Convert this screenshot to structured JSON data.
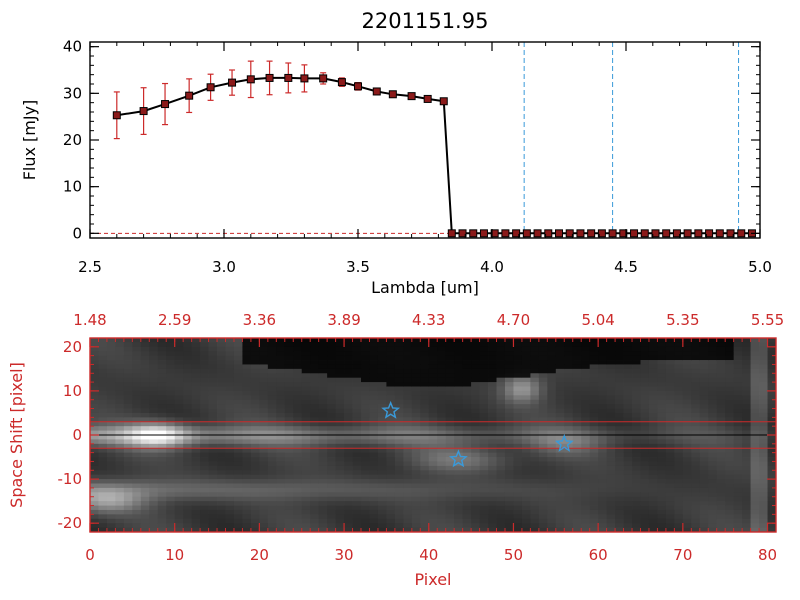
{
  "chart_data": [
    {
      "type": "line",
      "title": "2201151.95",
      "xlabel": "Lambda [um]",
      "ylabel": "Flux [mJy]",
      "xlim": [
        2.5,
        5.0
      ],
      "ylim": [
        -1,
        41
      ],
      "xticks": [
        "2.5",
        "3.0",
        "3.5",
        "4.0",
        "4.5",
        "5.0"
      ],
      "xtick_values": [
        2.5,
        3.0,
        3.5,
        4.0,
        4.5,
        5.0
      ],
      "yticks": [
        "0",
        "10",
        "20",
        "30",
        "40"
      ],
      "ytick_values": [
        0,
        10,
        20,
        30,
        40
      ],
      "series": [
        {
          "x": [
            2.6,
            2.7,
            2.78,
            2.87,
            2.95,
            3.03,
            3.1,
            3.17,
            3.24,
            3.3,
            3.37,
            3.44,
            3.5,
            3.57,
            3.63,
            3.7,
            3.76,
            3.82,
            3.85,
            3.89,
            3.93,
            3.97,
            4.01,
            4.05,
            4.09,
            4.13,
            4.17,
            4.21,
            4.25,
            4.29,
            4.33,
            4.37,
            4.41,
            4.45,
            4.49,
            4.53,
            4.57,
            4.61,
            4.65,
            4.69,
            4.73,
            4.77,
            4.81,
            4.85,
            4.89,
            4.93,
            4.97
          ],
          "y": [
            25.3,
            26.2,
            27.7,
            29.5,
            31.3,
            32.3,
            33.0,
            33.3,
            33.3,
            33.2,
            33.2,
            32.4,
            31.5,
            30.4,
            29.8,
            29.4,
            28.8,
            28.3,
            0,
            0,
            0,
            0,
            0,
            0,
            0,
            0,
            0,
            0,
            0,
            0,
            0,
            0,
            0,
            0,
            0,
            0,
            0,
            0,
            0,
            0,
            0,
            0,
            0,
            0,
            0,
            0,
            0
          ],
          "yerr": [
            5.0,
            5.0,
            4.4,
            3.6,
            2.8,
            2.7,
            3.9,
            3.6,
            3.2,
            2.9,
            1.2,
            0.9,
            0.8,
            0.7,
            0.6,
            0.6,
            0.5,
            0.5,
            0,
            0,
            0,
            0,
            0,
            0,
            0,
            0,
            0,
            0,
            0,
            0,
            0,
            0,
            0,
            0,
            0,
            0,
            0,
            0,
            0,
            0,
            0,
            0,
            0,
            0,
            0,
            0,
            0
          ]
        }
      ],
      "vlines": [
        4.12,
        4.45,
        4.92
      ],
      "colors": {
        "line": "#000000",
        "marker_fill": "#8b1a1a",
        "errorbar": "#cc2a2a",
        "vline": "#3a9ad9"
      },
      "grid": false
    },
    {
      "type": "heatmap",
      "xlabel": "Pixel",
      "ylabel": "Space Shift [pixel]",
      "xlim": [
        0,
        81
      ],
      "ylim": [
        -22,
        22
      ],
      "xticks": [
        "0",
        "10",
        "20",
        "30",
        "40",
        "50",
        "60",
        "70",
        "80"
      ],
      "xtick_values": [
        0,
        10,
        20,
        30,
        40,
        50,
        60,
        70,
        80
      ],
      "yticks": [
        "-20",
        "-10",
        "0",
        "10",
        "20"
      ],
      "ytick_values": [
        -20,
        -10,
        0,
        10,
        20
      ],
      "top_axis_ticks": [
        "1.48",
        "2.59",
        "3.36",
        "3.89",
        "4.33",
        "4.70",
        "5.04",
        "5.35",
        "5.55"
      ],
      "top_axis_tick_values": [
        0,
        10,
        20,
        30,
        40,
        50,
        60,
        70,
        80
      ],
      "hlines": [
        3,
        0,
        -3
      ],
      "stars": [
        {
          "x": 35.5,
          "y": 5.5
        },
        {
          "x": 43.5,
          "y": -5.5
        },
        {
          "x": 56.0,
          "y": -2.0
        }
      ],
      "colors": {
        "axis": "#cc2a2a",
        "star": "#3a9ad9",
        "zero_line": "#000000",
        "band_lines": "#cc2a2a"
      },
      "grid": false
    }
  ]
}
